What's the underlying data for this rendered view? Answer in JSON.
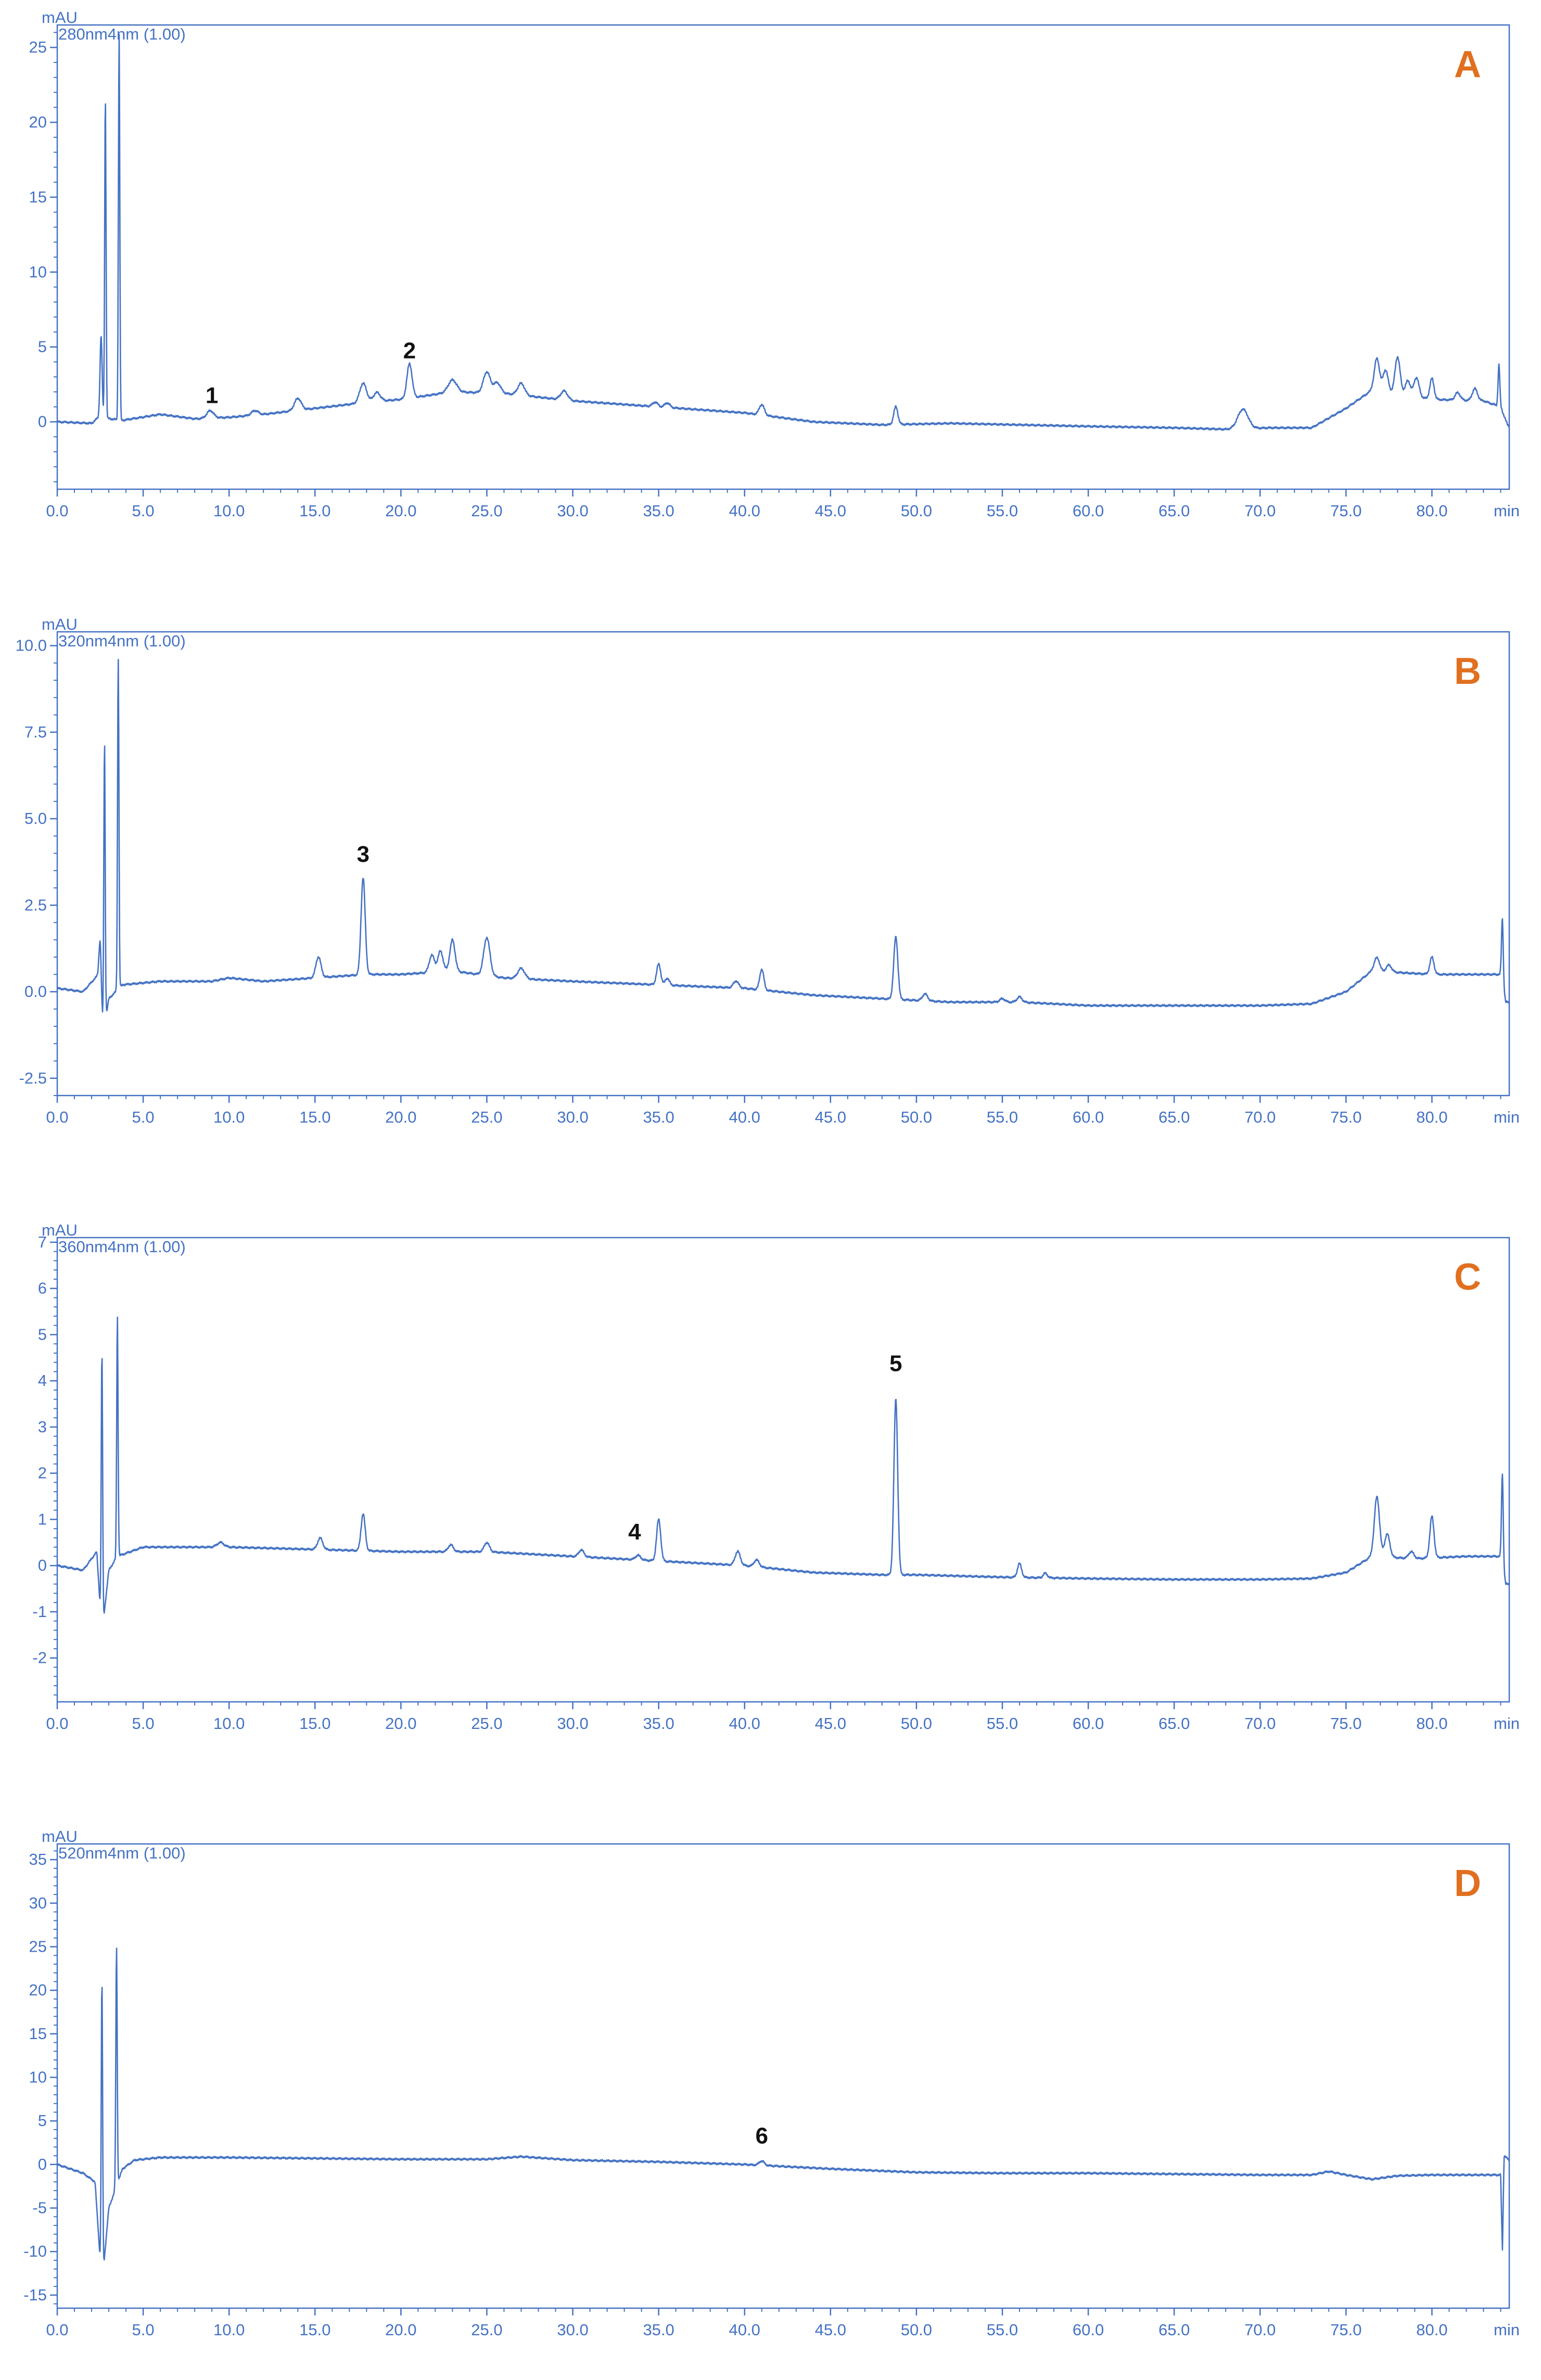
{
  "colors": {
    "trace": "#4472c4",
    "frame": "#4472c4",
    "panel_letter": "#e07020",
    "peak_label": "#111111"
  },
  "chart_data": [
    {
      "type": "line",
      "panel_letter": "A",
      "y_unit": "mAU",
      "x_unit": "min",
      "wavelength_label": "280nm4nm (1.00)",
      "xlim": [
        0,
        84.5
      ],
      "ylim": [
        -4.5,
        26.5
      ],
      "x_ticks": [
        "0.0",
        "5.0",
        "10.0",
        "15.0",
        "20.0",
        "25.0",
        "30.0",
        "35.0",
        "40.0",
        "45.0",
        "50.0",
        "55.0",
        "60.0",
        "65.0",
        "70.0",
        "75.0",
        "80.0"
      ],
      "y_ticks": [
        "0",
        "5",
        "10",
        "15",
        "20",
        "25"
      ],
      "baseline": [
        [
          0,
          0.0
        ],
        [
          2.0,
          -0.1
        ],
        [
          2.4,
          0.3
        ],
        [
          3.8,
          0.1
        ],
        [
          6.0,
          0.5
        ],
        [
          8.0,
          0.2
        ],
        [
          10.0,
          0.3
        ],
        [
          12.0,
          0.5
        ],
        [
          15.0,
          0.9
        ],
        [
          18.0,
          1.3
        ],
        [
          20.0,
          1.5
        ],
        [
          23.0,
          2.0
        ],
        [
          26.0,
          1.9
        ],
        [
          30.0,
          1.4
        ],
        [
          35.0,
          1.0
        ],
        [
          40.0,
          0.6
        ],
        [
          44.0,
          0.0
        ],
        [
          48.0,
          -0.2
        ],
        [
          52.0,
          -0.1
        ],
        [
          56.0,
          -0.2
        ],
        [
          60.0,
          -0.3
        ],
        [
          65.0,
          -0.4
        ],
        [
          68.0,
          -0.5
        ],
        [
          70.5,
          -0.4
        ],
        [
          73.0,
          -0.4
        ],
        [
          75.0,
          0.9
        ],
        [
          76.5,
          2.1
        ],
        [
          80.0,
          1.5
        ],
        [
          83.0,
          1.4
        ],
        [
          84.0,
          1.0
        ],
        [
          84.4,
          -0.2
        ],
        [
          84.5,
          -0.3
        ]
      ],
      "peaks": [
        [
          2.55,
          5.5,
          0.06
        ],
        [
          2.8,
          21.5,
          0.04
        ],
        [
          3.6,
          25.8,
          0.04
        ],
        [
          8.9,
          0.5,
          0.2
        ],
        [
          11.5,
          0.3,
          0.2
        ],
        [
          14.0,
          0.8,
          0.2
        ],
        [
          17.8,
          1.3,
          0.2
        ],
        [
          18.6,
          0.6,
          0.2
        ],
        [
          20.5,
          2.3,
          0.15
        ],
        [
          23.0,
          0.8,
          0.25
        ],
        [
          25.0,
          1.4,
          0.2
        ],
        [
          25.6,
          0.7,
          0.2
        ],
        [
          27.0,
          0.8,
          0.2
        ],
        [
          29.5,
          0.6,
          0.2
        ],
        [
          34.8,
          0.3,
          0.15
        ],
        [
          35.5,
          0.3,
          0.15
        ],
        [
          41.0,
          0.7,
          0.15
        ],
        [
          48.8,
          1.2,
          0.12
        ],
        [
          69.0,
          1.3,
          0.3
        ],
        [
          76.8,
          2.2,
          0.15
        ],
        [
          77.3,
          1.5,
          0.15
        ],
        [
          78.0,
          2.5,
          0.15
        ],
        [
          78.6,
          1.0,
          0.15
        ],
        [
          79.1,
          1.3,
          0.15
        ],
        [
          80.0,
          1.4,
          0.12
        ],
        [
          81.5,
          0.5,
          0.15
        ],
        [
          82.5,
          0.8,
          0.15
        ],
        [
          83.9,
          2.8,
          0.05
        ]
      ],
      "peak_labels": [
        {
          "label": "1",
          "x": 9.0,
          "y": 0.9
        },
        {
          "label": "2",
          "x": 20.5,
          "y": 3.9
        }
      ]
    },
    {
      "type": "line",
      "panel_letter": "B",
      "y_unit": "mAU",
      "x_unit": "min",
      "wavelength_label": "320nm4nm (1.00)",
      "xlim": [
        0,
        84.5
      ],
      "ylim": [
        -3.0,
        10.4
      ],
      "x_ticks": [
        "0.0",
        "5.0",
        "10.0",
        "15.0",
        "20.0",
        "25.0",
        "30.0",
        "35.0",
        "40.0",
        "45.0",
        "50.0",
        "55.0",
        "60.0",
        "65.0",
        "70.0",
        "75.0",
        "80.0"
      ],
      "y_ticks": [
        "-2.5",
        "0.0",
        "2.5",
        "5.0",
        "7.5",
        "10.0"
      ],
      "baseline": [
        [
          0,
          0.1
        ],
        [
          1.5,
          0.0
        ],
        [
          2.4,
          0.5
        ],
        [
          2.7,
          -1.2
        ],
        [
          3.0,
          -0.2
        ],
        [
          3.8,
          0.2
        ],
        [
          6.0,
          0.3
        ],
        [
          9.0,
          0.3
        ],
        [
          10.0,
          0.4
        ],
        [
          12.0,
          0.3
        ],
        [
          15.0,
          0.4
        ],
        [
          18.0,
          0.5
        ],
        [
          20.0,
          0.5
        ],
        [
          23.0,
          0.6
        ],
        [
          26.0,
          0.4
        ],
        [
          30.0,
          0.3
        ],
        [
          35.0,
          0.2
        ],
        [
          40.0,
          0.1
        ],
        [
          44.0,
          -0.1
        ],
        [
          48.0,
          -0.2
        ],
        [
          52.0,
          -0.3
        ],
        [
          56.0,
          -0.3
        ],
        [
          60.0,
          -0.4
        ],
        [
          65.0,
          -0.4
        ],
        [
          70.0,
          -0.4
        ],
        [
          73.0,
          -0.35
        ],
        [
          75.0,
          0.0
        ],
        [
          76.5,
          0.6
        ],
        [
          80.0,
          0.5
        ],
        [
          83.5,
          0.5
        ],
        [
          84.0,
          0.5
        ],
        [
          84.3,
          -0.3
        ],
        [
          84.5,
          -0.3
        ]
      ],
      "peaks": [
        [
          2.5,
          1.5,
          0.06
        ],
        [
          2.75,
          8.3,
          0.04
        ],
        [
          3.55,
          9.6,
          0.04
        ],
        [
          15.2,
          0.6,
          0.15
        ],
        [
          17.8,
          2.8,
          0.12
        ],
        [
          21.8,
          0.5,
          0.15
        ],
        [
          22.3,
          0.6,
          0.15
        ],
        [
          23.0,
          0.9,
          0.15
        ],
        [
          25.0,
          1.1,
          0.18
        ],
        [
          27.0,
          0.3,
          0.2
        ],
        [
          35.0,
          0.6,
          0.12
        ],
        [
          35.5,
          0.2,
          0.12
        ],
        [
          39.5,
          0.2,
          0.15
        ],
        [
          41.0,
          0.6,
          0.12
        ],
        [
          48.8,
          1.8,
          0.12
        ],
        [
          50.5,
          0.2,
          0.15
        ],
        [
          55.0,
          0.1,
          0.15
        ],
        [
          56.0,
          0.15,
          0.15
        ],
        [
          76.8,
          0.4,
          0.15
        ],
        [
          77.5,
          0.2,
          0.15
        ],
        [
          80.0,
          0.5,
          0.12
        ],
        [
          84.1,
          1.9,
          0.05
        ]
      ],
      "peak_labels": [
        {
          "label": "3",
          "x": 17.8,
          "y": 3.6
        }
      ]
    },
    {
      "type": "line",
      "panel_letter": "C",
      "y_unit": "mAU",
      "x_unit": "min",
      "wavelength_label": "360nm4nm (1.00)",
      "xlim": [
        0,
        84.5
      ],
      "ylim": [
        -2.95,
        7.1
      ],
      "x_ticks": [
        "0.0",
        "5.0",
        "10.0",
        "15.0",
        "20.0",
        "25.0",
        "30.0",
        "35.0",
        "40.0",
        "45.0",
        "50.0",
        "55.0",
        "60.0",
        "65.0",
        "70.0",
        "75.0",
        "80.0"
      ],
      "y_ticks": [
        "-2",
        "-1",
        "0",
        "1",
        "2",
        "3",
        "4",
        "5",
        "6",
        "7"
      ],
      "baseline": [
        [
          0,
          0.0
        ],
        [
          1.5,
          -0.1
        ],
        [
          2.3,
          0.3
        ],
        [
          2.6,
          -1.5
        ],
        [
          3.0,
          -0.1
        ],
        [
          3.5,
          0.2
        ],
        [
          5.0,
          0.4
        ],
        [
          10.0,
          0.4
        ],
        [
          15.0,
          0.35
        ],
        [
          20.0,
          0.3
        ],
        [
          25.0,
          0.3
        ],
        [
          30.0,
          0.2
        ],
        [
          35.0,
          0.1
        ],
        [
          40.0,
          0.0
        ],
        [
          44.0,
          -0.15
        ],
        [
          48.0,
          -0.2
        ],
        [
          50.0,
          -0.2
        ],
        [
          55.0,
          -0.25
        ],
        [
          60.0,
          -0.28
        ],
        [
          65.0,
          -0.3
        ],
        [
          70.0,
          -0.3
        ],
        [
          73.0,
          -0.28
        ],
        [
          75.0,
          -0.15
        ],
        [
          76.5,
          0.2
        ],
        [
          79.0,
          0.15
        ],
        [
          82.0,
          0.2
        ],
        [
          84.0,
          0.2
        ],
        [
          84.3,
          -0.4
        ],
        [
          84.5,
          -0.4
        ]
      ],
      "peaks": [
        [
          2.6,
          6.1,
          0.04
        ],
        [
          3.5,
          5.2,
          0.04
        ],
        [
          9.5,
          0.1,
          0.2
        ],
        [
          15.3,
          0.25,
          0.15
        ],
        [
          17.8,
          0.8,
          0.12
        ],
        [
          22.9,
          0.15,
          0.15
        ],
        [
          25.0,
          0.2,
          0.15
        ],
        [
          30.5,
          0.15,
          0.15
        ],
        [
          33.8,
          0.1,
          0.15
        ],
        [
          35.0,
          0.9,
          0.12
        ],
        [
          39.6,
          0.3,
          0.15
        ],
        [
          40.7,
          0.15,
          0.15
        ],
        [
          48.8,
          3.8,
          0.11
        ],
        [
          56.0,
          0.3,
          0.12
        ],
        [
          57.5,
          0.1,
          0.12
        ],
        [
          76.8,
          1.3,
          0.15
        ],
        [
          77.4,
          0.5,
          0.15
        ],
        [
          78.8,
          0.15,
          0.15
        ],
        [
          80.0,
          0.9,
          0.12
        ],
        [
          84.1,
          2.0,
          0.05
        ]
      ],
      "peak_labels": [
        {
          "label": "4",
          "x": 33.6,
          "y": 0.45
        },
        {
          "label": "5",
          "x": 48.8,
          "y": 4.1
        }
      ]
    },
    {
      "type": "line",
      "panel_letter": "D",
      "y_unit": "mAU",
      "x_unit": "min",
      "wavelength_label": "520nm4nm (1.00)",
      "xlim": [
        0,
        84.5
      ],
      "ylim": [
        -16.5,
        36.8
      ],
      "x_ticks": [
        "0.0",
        "5.0",
        "10.0",
        "15.0",
        "20.0",
        "25.0",
        "30.0",
        "35.0",
        "40.0",
        "45.0",
        "50.0",
        "55.0",
        "60.0",
        "65.0",
        "70.0",
        "75.0",
        "80.0"
      ],
      "y_ticks": [
        "-15",
        "-10",
        "-5",
        "0",
        "5",
        "10",
        "15",
        "20",
        "25",
        "30",
        "35"
      ],
      "baseline": [
        [
          0,
          0.0
        ],
        [
          1.5,
          -1.0
        ],
        [
          2.2,
          -2.0
        ],
        [
          2.6,
          -14.0
        ],
        [
          3.0,
          -5.0
        ],
        [
          3.8,
          -0.5
        ],
        [
          4.5,
          0.5
        ],
        [
          6.0,
          0.8
        ],
        [
          10.0,
          0.8
        ],
        [
          15.0,
          0.7
        ],
        [
          20.0,
          0.6
        ],
        [
          25.0,
          0.6
        ],
        [
          27.0,
          0.9
        ],
        [
          30.0,
          0.5
        ],
        [
          35.0,
          0.3
        ],
        [
          40.0,
          0.0
        ],
        [
          45.0,
          -0.5
        ],
        [
          50.0,
          -0.9
        ],
        [
          55.0,
          -1.0
        ],
        [
          60.0,
          -1.0
        ],
        [
          65.0,
          -1.1
        ],
        [
          70.0,
          -1.2
        ],
        [
          73.0,
          -1.2
        ],
        [
          74.0,
          -0.8
        ],
        [
          75.0,
          -1.2
        ],
        [
          76.5,
          -1.7
        ],
        [
          78.0,
          -1.3
        ],
        [
          80.0,
          -1.2
        ],
        [
          83.5,
          -1.2
        ],
        [
          84.0,
          -1.2
        ],
        [
          84.1,
          -10.0
        ],
        [
          84.2,
          1.0
        ],
        [
          84.5,
          0.5
        ]
      ],
      "peaks": [
        [
          2.6,
          35.0,
          0.04
        ],
        [
          3.45,
          27.5,
          0.04
        ],
        [
          41.0,
          0.5,
          0.15
        ]
      ],
      "peak_labels": [
        {
          "label": "6",
          "x": 41.0,
          "y": 1.8
        }
      ]
    }
  ]
}
